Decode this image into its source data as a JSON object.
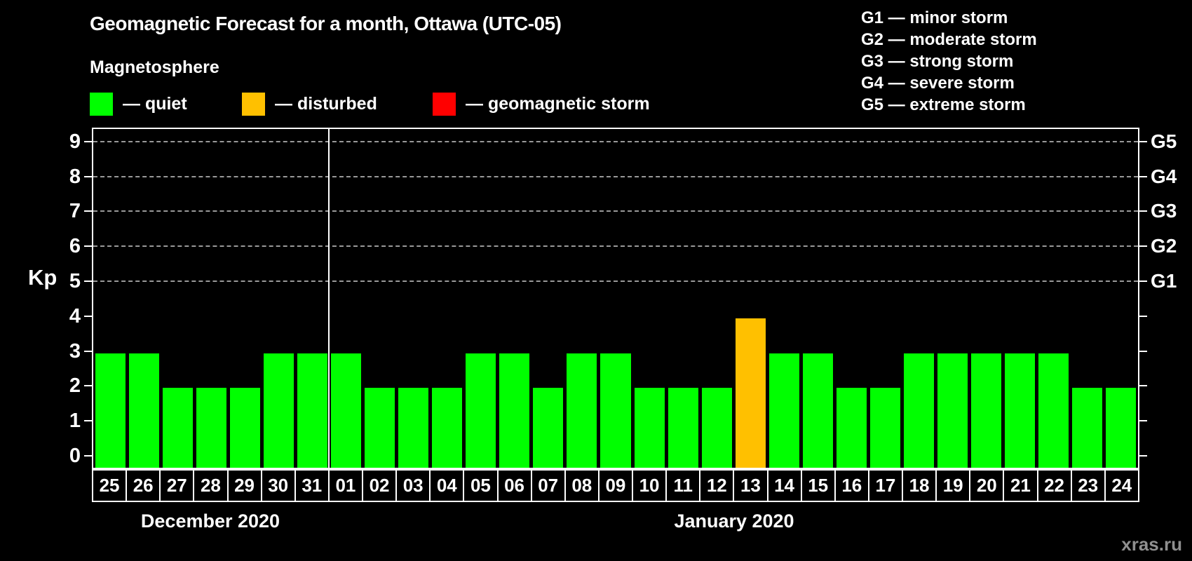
{
  "title": "Geomagnetic Forecast for a month, Ottawa (UTC-05)",
  "legend": {
    "heading": "Magnetosphere",
    "items": [
      {
        "name": "quiet",
        "label": "— quiet",
        "color": "#00ff00"
      },
      {
        "name": "disturbed",
        "label": "— disturbed",
        "color": "#ffc000"
      },
      {
        "name": "storm",
        "label": "— geomagnetic storm",
        "color": "#ff0000"
      }
    ]
  },
  "storm_scale_legend": [
    {
      "label": "G1 — minor storm"
    },
    {
      "label": "G2 — moderate storm"
    },
    {
      "label": "G3 — strong storm"
    },
    {
      "label": "G4 — severe storm"
    },
    {
      "label": "G5 — extreme storm"
    }
  ],
  "watermark": "xras.ru",
  "chart_data": {
    "type": "bar",
    "ylabel": "Kp",
    "ylim": [
      0,
      9
    ],
    "yticks": [
      0,
      1,
      2,
      3,
      4,
      5,
      6,
      7,
      8,
      9
    ],
    "gridlines_kp": [
      5,
      6,
      7,
      8,
      9
    ],
    "grid": "dashed horizontal at Kp 5-9 only",
    "right_axis_labels": [
      {
        "label": "G1",
        "kp": 5
      },
      {
        "label": "G2",
        "kp": 6
      },
      {
        "label": "G3",
        "kp": 7
      },
      {
        "label": "G4",
        "kp": 8
      },
      {
        "label": "G5",
        "kp": 9
      }
    ],
    "months": [
      {
        "label": "December 2020",
        "days": 7
      },
      {
        "label": "January 2020",
        "days": 24
      }
    ],
    "categories": [
      "25",
      "26",
      "27",
      "28",
      "29",
      "30",
      "31",
      "01",
      "02",
      "03",
      "04",
      "05",
      "06",
      "07",
      "08",
      "09",
      "10",
      "11",
      "12",
      "13",
      "14",
      "15",
      "16",
      "17",
      "18",
      "19",
      "20",
      "21",
      "22",
      "23",
      "24"
    ],
    "values": [
      3,
      3,
      2,
      2,
      2,
      3,
      3,
      3,
      2,
      2,
      2,
      3,
      3,
      2,
      3,
      3,
      2,
      2,
      2,
      4,
      3,
      3,
      2,
      2,
      3,
      3,
      3,
      3,
      3,
      2,
      2
    ],
    "statuses": [
      "quiet",
      "quiet",
      "quiet",
      "quiet",
      "quiet",
      "quiet",
      "quiet",
      "quiet",
      "quiet",
      "quiet",
      "quiet",
      "quiet",
      "quiet",
      "quiet",
      "quiet",
      "quiet",
      "quiet",
      "quiet",
      "quiet",
      "disturbed",
      "quiet",
      "quiet",
      "quiet",
      "quiet",
      "quiet",
      "quiet",
      "quiet",
      "quiet",
      "quiet",
      "quiet",
      "quiet"
    ],
    "colors": {
      "quiet": "#00ff00",
      "disturbed": "#ffc000",
      "storm": "#ff0000"
    }
  }
}
